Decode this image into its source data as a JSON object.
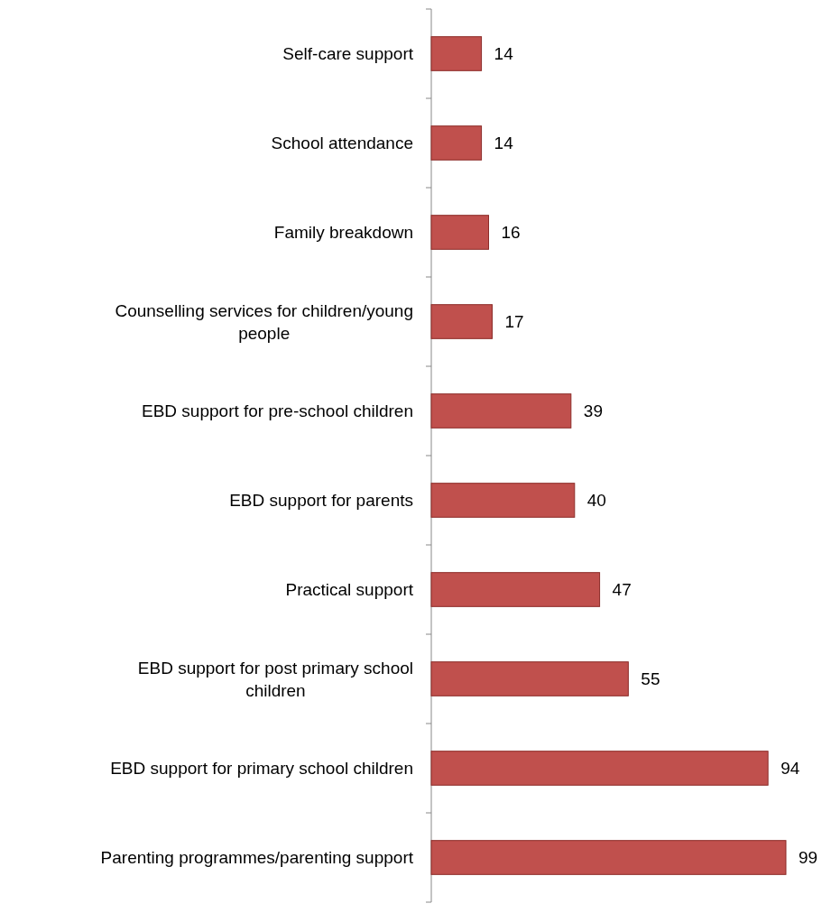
{
  "chart_data": {
    "type": "bar",
    "orientation": "horizontal",
    "categories": [
      "Self-care support",
      "School attendance",
      "Family breakdown",
      "Counselling services for children/young people",
      "EBD support for pre-school children",
      "EBD support for parents",
      "Practical support",
      "EBD support for post primary school children",
      "EBD support for primary school children",
      "Parenting programmes/parenting support"
    ],
    "values": [
      14,
      14,
      16,
      17,
      39,
      40,
      47,
      55,
      94,
      99
    ],
    "color": "#c0504d",
    "data_labels": true
  }
}
